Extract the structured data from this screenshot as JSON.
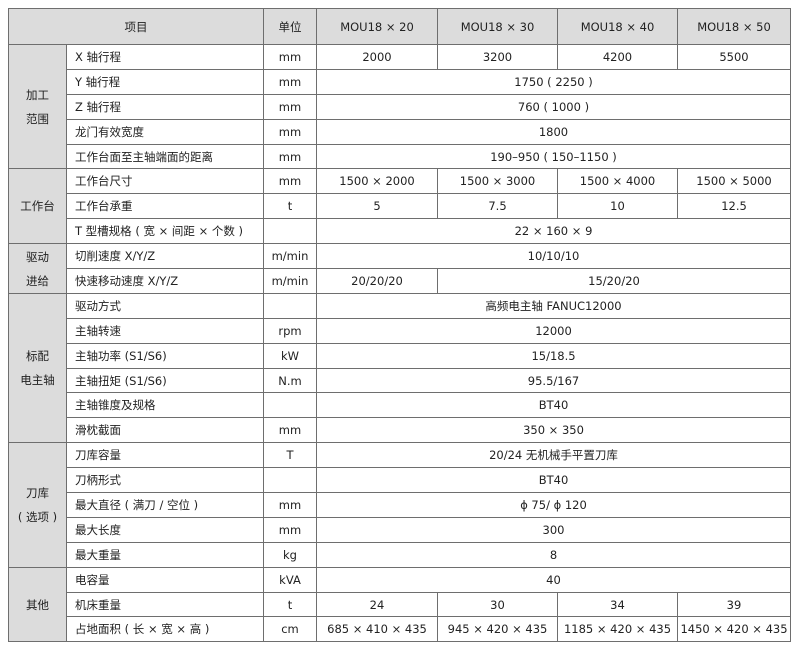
{
  "header": {
    "item": "项目",
    "unit": "单位",
    "models": [
      "MOU18 × 20",
      "MOU18 × 30",
      "MOU18 × 40",
      "MOU18 × 50"
    ]
  },
  "groups": [
    {
      "label": [
        "加工",
        "范围"
      ],
      "rows": [
        {
          "name": "X 轴行程",
          "unit": "mm",
          "values": [
            "2000",
            "3200",
            "4200",
            "5500"
          ]
        },
        {
          "name": "Y 轴行程",
          "unit": "mm",
          "value": "1750 ( 2250 )"
        },
        {
          "name": "Z 轴行程",
          "unit": "mm",
          "value": "760 ( 1000 )"
        },
        {
          "name": "龙门有效宽度",
          "unit": "mm",
          "value": "1800"
        },
        {
          "name": "工作台面至主轴端面的距离",
          "unit": "mm",
          "value": "190–950 ( 150–1150 )"
        }
      ]
    },
    {
      "label": [
        "工作台"
      ],
      "rows": [
        {
          "name": "工作台尺寸",
          "unit": "mm",
          "values": [
            "1500 × 2000",
            "1500 × 3000",
            "1500 × 4000",
            "1500 × 5000"
          ]
        },
        {
          "name": "工作台承重",
          "unit": "t",
          "values": [
            "5",
            "7.5",
            "10",
            "12.5"
          ]
        },
        {
          "name": "T 型槽规格 ( 宽 × 间距 × 个数 )",
          "unit": "",
          "value": "22 × 160 × 9"
        }
      ]
    },
    {
      "label": [
        "驱动",
        "进给"
      ],
      "rows": [
        {
          "name": "切削速度 X/Y/Z",
          "unit": "m/min",
          "value": "10/10/10"
        },
        {
          "name": "快速移动速度 X/Y/Z",
          "unit": "m/min",
          "first": "20/20/20",
          "rest": "15/20/20"
        }
      ]
    },
    {
      "label": [
        "标配",
        "电主轴"
      ],
      "rows": [
        {
          "name": "驱动方式",
          "unit": "",
          "value": "高频电主轴 FANUC12000"
        },
        {
          "name": "主轴转速",
          "unit": "rpm",
          "value": "12000"
        },
        {
          "name": "主轴功率 (S1/S6)",
          "unit": "kW",
          "value": "15/18.5"
        },
        {
          "name": "主轴扭矩 (S1/S6)",
          "unit": "N.m",
          "value": "95.5/167"
        },
        {
          "name": "主轴锥度及规格",
          "unit": "",
          "value": "BT40"
        },
        {
          "name": "滑枕截面",
          "unit": "mm",
          "value": "350 × 350"
        }
      ]
    },
    {
      "label": [
        "刀库",
        "( 选项 )"
      ],
      "rows": [
        {
          "name": "刀库容量",
          "unit": "T",
          "value": "20/24 无机械手平置刀库"
        },
        {
          "name": "刀柄形式",
          "unit": "",
          "value": "BT40"
        },
        {
          "name": "最大直径 ( 满刀 / 空位 )",
          "unit": "mm",
          "value": "ϕ 75/ ϕ 120"
        },
        {
          "name": "最大长度",
          "unit": "mm",
          "value": "300"
        },
        {
          "name": "最大重量",
          "unit": "kg",
          "value": "8"
        }
      ]
    },
    {
      "label": [
        "其他"
      ],
      "rows": [
        {
          "name": "电容量",
          "unit": "kVA",
          "value": "40"
        },
        {
          "name": "机床重量",
          "unit": "t",
          "values": [
            "24",
            "30",
            "34",
            "39"
          ]
        },
        {
          "name": "占地面积 ( 长 × 宽 × 高 )",
          "unit": "cm",
          "values": [
            "685 × 410 × 435",
            "945 × 420 × 435",
            "1185 × 420 × 435",
            "1450 × 420 × 435"
          ]
        }
      ]
    }
  ]
}
